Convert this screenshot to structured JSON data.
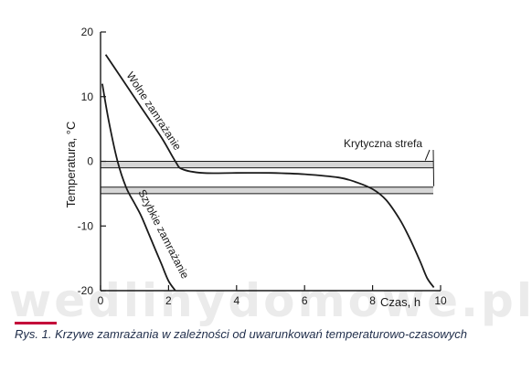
{
  "watermark": "wedlinydomowe.pl",
  "caption": "Rys. 1. Krzywe zamrażania w zależności od uwarunkowań temperaturowo-czasowych",
  "colors": {
    "ink": "#1a1a1a",
    "band": "#d6d6d6",
    "caption_bar": "#c4003a",
    "caption_text": "#1f2d4a"
  },
  "chart_data": {
    "type": "line",
    "ylabel": "Temperatura, °C",
    "xlabel": "Czas, h",
    "xlim": [
      0,
      10
    ],
    "ylim": [
      -20,
      20
    ],
    "x_ticks": [
      0,
      2,
      4,
      6,
      8,
      10
    ],
    "y_ticks": [
      -20,
      -10,
      0,
      10,
      20
    ],
    "grid": false,
    "critical_zone": {
      "label": "Krytyczna strefa",
      "bands": [
        [
          -1,
          0
        ],
        [
          -5,
          -4
        ]
      ]
    },
    "series": [
      {
        "name": "Wolne zamrażanie",
        "x": [
          0.15,
          0.6,
          1.2,
          1.8,
          2.2,
          2.4,
          3,
          4,
          5,
          6,
          7,
          7.5,
          8,
          8.4,
          8.8,
          9.1,
          9.4,
          9.6,
          9.8
        ],
        "y": [
          16.5,
          13,
          8.3,
          3.6,
          0,
          -1.2,
          -1.8,
          -1.8,
          -1.8,
          -2,
          -2.5,
          -3.2,
          -4.3,
          -6,
          -9,
          -12,
          -15.5,
          -18,
          -19.5
        ]
      },
      {
        "name": "Szybkie zamrażanie",
        "x": [
          0.05,
          0.25,
          0.5,
          0.75,
          1,
          1.2,
          1.4,
          1.6,
          1.8,
          2,
          2.2
        ],
        "y": [
          12,
          6,
          0,
          -4,
          -6.5,
          -8.5,
          -11,
          -13.5,
          -16,
          -18.5,
          -20
        ]
      }
    ]
  }
}
